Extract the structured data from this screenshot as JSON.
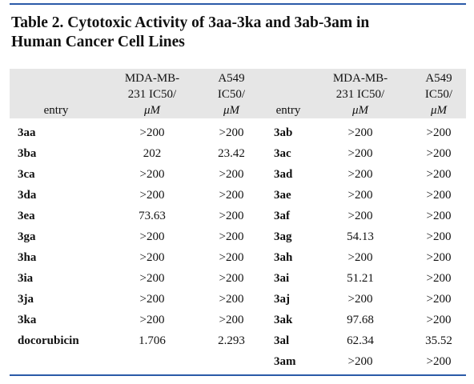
{
  "header": {
    "title_lines": [
      "Table 2. Cytotoxic Activity of 3aa-3ka and 3ab-3am in",
      "Human Cancer Cell Lines"
    ]
  },
  "table": {
    "columns": [
      {
        "lines": [
          "entry"
        ]
      },
      {
        "lines": [
          "MDA-MB-",
          "231 IC50/",
          "μM"
        ]
      },
      {
        "lines": [
          "A549",
          "IC50/",
          "μM"
        ]
      },
      {
        "lines": [
          "entry"
        ]
      },
      {
        "lines": [
          "MDA-MB-",
          "231 IC50/",
          "μM"
        ]
      },
      {
        "lines": [
          "A549",
          "IC50/",
          "μM"
        ]
      }
    ],
    "left_rows": [
      [
        "3aa",
        ">200",
        ">200"
      ],
      [
        "3ba",
        "202",
        "23.42"
      ],
      [
        "3ca",
        ">200",
        ">200"
      ],
      [
        "3da",
        ">200",
        ">200"
      ],
      [
        "3ea",
        "73.63",
        ">200"
      ],
      [
        "3ga",
        ">200",
        ">200"
      ],
      [
        "3ha",
        ">200",
        ">200"
      ],
      [
        "3ia",
        ">200",
        ">200"
      ],
      [
        "3ja",
        ">200",
        ">200"
      ],
      [
        "3ka",
        ">200",
        ">200"
      ],
      [
        "docorubicin",
        "1.706",
        "2.293"
      ]
    ],
    "right_rows": [
      [
        "3ab",
        ">200",
        ">200"
      ],
      [
        "3ac",
        ">200",
        ">200"
      ],
      [
        "3ad",
        ">200",
        ">200"
      ],
      [
        "3ae",
        ">200",
        ">200"
      ],
      [
        "3af",
        ">200",
        ">200"
      ],
      [
        "3ag",
        "54.13",
        ">200"
      ],
      [
        "3ah",
        ">200",
        ">200"
      ],
      [
        "3ai",
        "51.21",
        ">200"
      ],
      [
        "3aj",
        ">200",
        ">200"
      ],
      [
        "3ak",
        "97.68",
        ">200"
      ],
      [
        "3al",
        "62.34",
        "35.52"
      ],
      [
        "3am",
        ">200",
        ">200"
      ]
    ]
  }
}
